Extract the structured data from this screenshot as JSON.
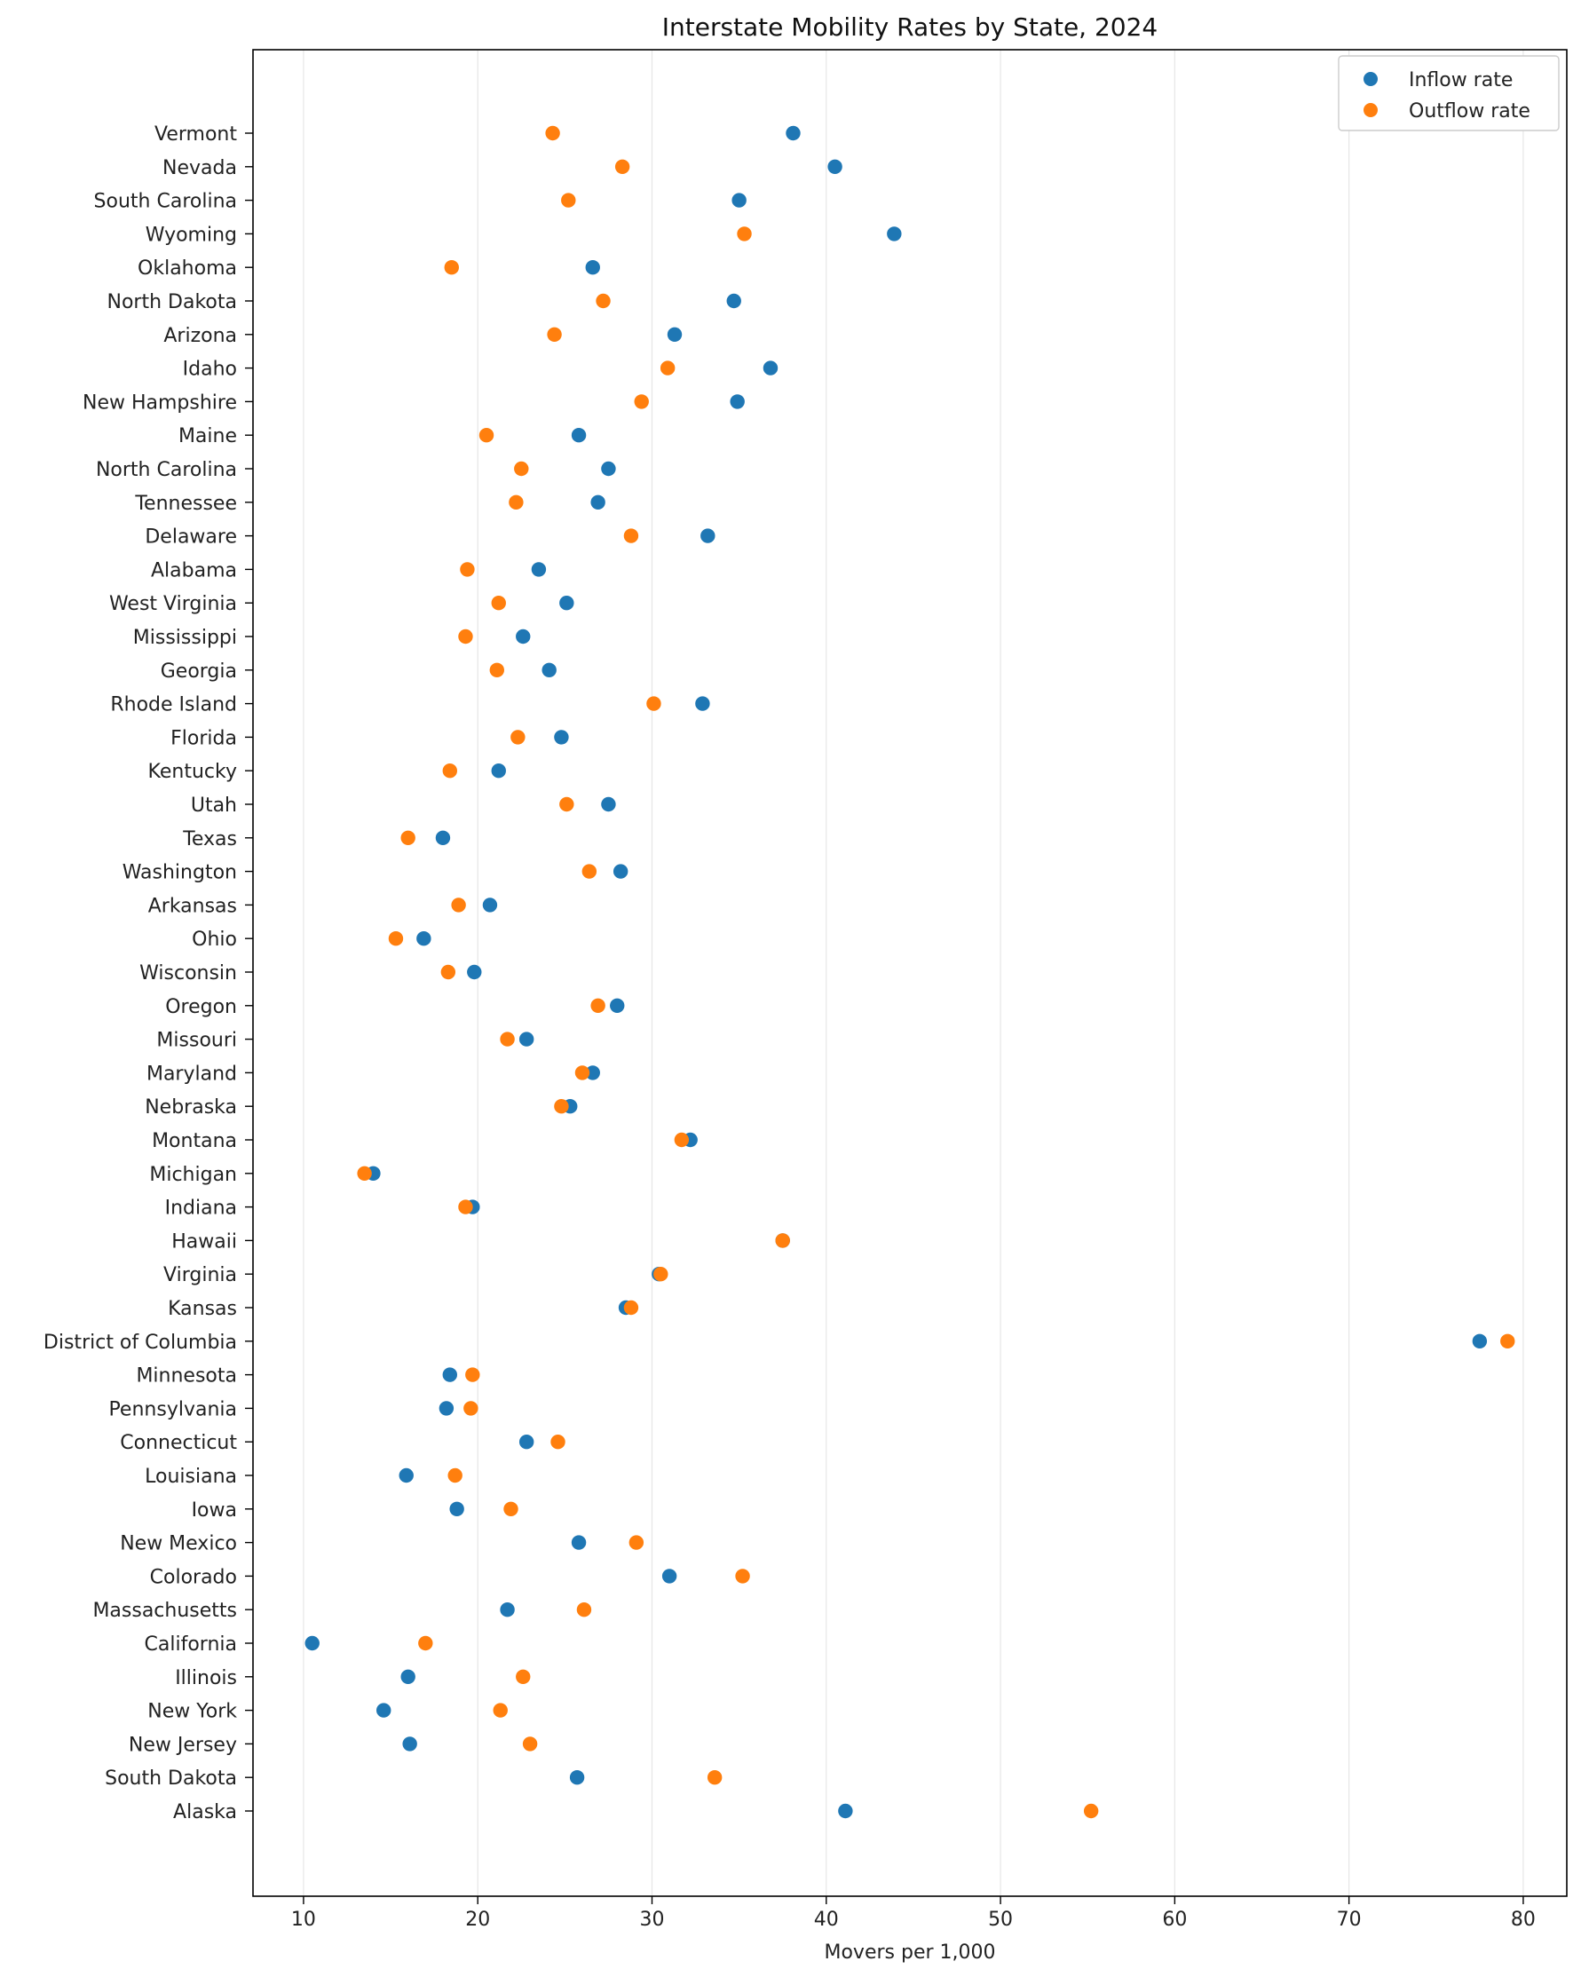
{
  "chart_data": {
    "type": "scatter",
    "title": "Interstate Mobility Rates by State, 2024",
    "xlabel": "Movers per 1,000",
    "ylabel": "",
    "xlim": [
      7.1,
      82.5
    ],
    "xticks": [
      10,
      20,
      30,
      40,
      50,
      60,
      70,
      80
    ],
    "grid": "vertical",
    "legend_position": "top-right",
    "categories": [
      "Vermont",
      "Nevada",
      "South Carolina",
      "Wyoming",
      "Oklahoma",
      "North Dakota",
      "Arizona",
      "Idaho",
      "New Hampshire",
      "Maine",
      "North Carolina",
      "Tennessee",
      "Delaware",
      "Alabama",
      "West Virginia",
      "Mississippi",
      "Georgia",
      "Rhode Island",
      "Florida",
      "Kentucky",
      "Utah",
      "Texas",
      "Washington",
      "Arkansas",
      "Ohio",
      "Wisconsin",
      "Oregon",
      "Missouri",
      "Maryland",
      "Nebraska",
      "Montana",
      "Michigan",
      "Indiana",
      "Hawaii",
      "Virginia",
      "Kansas",
      "District of Columbia",
      "Minnesota",
      "Pennsylvania",
      "Connecticut",
      "Louisiana",
      "Iowa",
      "New Mexico",
      "Colorado",
      "Massachusetts",
      "California",
      "Illinois",
      "New York",
      "New Jersey",
      "South Dakota",
      "Alaska"
    ],
    "series": [
      {
        "name": "Inflow rate",
        "color": "#1f77b4",
        "values": [
          38.1,
          40.5,
          35.0,
          43.9,
          26.6,
          34.7,
          31.3,
          36.8,
          34.9,
          25.8,
          27.5,
          26.9,
          33.2,
          23.5,
          25.1,
          22.6,
          24.1,
          32.9,
          24.8,
          21.2,
          27.5,
          18.0,
          28.2,
          20.7,
          16.9,
          19.8,
          28.0,
          22.8,
          26.6,
          25.3,
          32.2,
          14.0,
          19.7,
          37.5,
          30.4,
          28.5,
          77.5,
          18.4,
          18.2,
          22.8,
          15.9,
          18.8,
          25.8,
          31.0,
          21.7,
          10.5,
          16.0,
          14.6,
          16.1,
          25.7,
          41.1
        ]
      },
      {
        "name": "Outflow rate",
        "color": "#ff7f0e",
        "values": [
          24.3,
          28.3,
          25.2,
          35.3,
          18.5,
          27.2,
          24.4,
          30.9,
          29.4,
          20.5,
          22.5,
          22.2,
          28.8,
          19.4,
          21.2,
          19.3,
          21.1,
          30.1,
          22.3,
          18.4,
          25.1,
          16.0,
          26.4,
          18.9,
          15.3,
          18.3,
          26.9,
          21.7,
          26.0,
          24.8,
          31.7,
          13.5,
          19.3,
          37.5,
          30.5,
          28.8,
          79.1,
          19.7,
          19.6,
          24.6,
          18.7,
          21.9,
          29.1,
          35.2,
          26.1,
          17.0,
          22.6,
          21.3,
          23.0,
          33.6,
          55.2
        ]
      }
    ]
  }
}
